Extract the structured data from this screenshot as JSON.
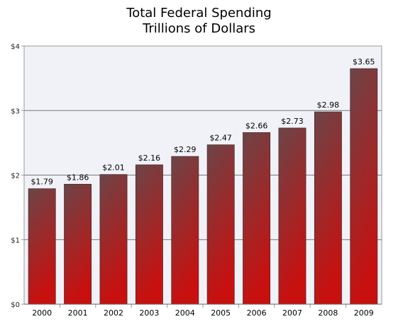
{
  "chart_data": {
    "type": "bar",
    "title": "Total Federal Spending",
    "subtitle": "Trillions of Dollars",
    "categories": [
      "2000",
      "2001",
      "2002",
      "2003",
      "2004",
      "2005",
      "2006",
      "2007",
      "2008",
      "2009"
    ],
    "values": [
      1.79,
      1.86,
      2.01,
      2.16,
      2.29,
      2.47,
      2.66,
      2.73,
      2.98,
      3.65
    ],
    "data_labels": [
      "$1.79",
      "$1.86",
      "$2.01",
      "$2.16",
      "$2.29",
      "$2.47",
      "$2.66",
      "$2.73",
      "$2.98",
      "$3.65"
    ],
    "ylim": [
      0,
      4
    ],
    "yticks": [
      0,
      1,
      2,
      3,
      4
    ],
    "ytick_labels": [
      "$0",
      "$1",
      "$2",
      "$3",
      "$4"
    ],
    "xlabel": "",
    "ylabel": "",
    "grid": true,
    "colors": {
      "bar_top": "#6b4548",
      "bar_bottom": "#c8100f",
      "plot_background": "#f1f2f8",
      "gridline": "#777777",
      "axis": "#999999"
    }
  }
}
